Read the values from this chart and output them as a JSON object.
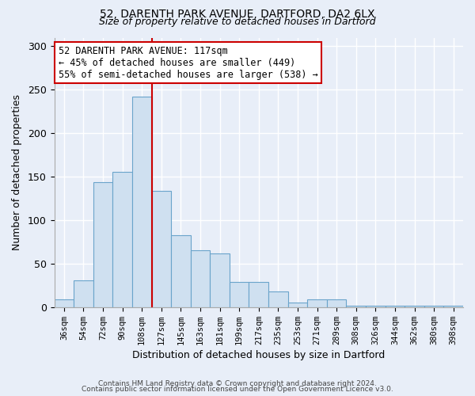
{
  "title1": "52, DARENTH PARK AVENUE, DARTFORD, DA2 6LX",
  "title2": "Size of property relative to detached houses in Dartford",
  "xlabel": "Distribution of detached houses by size in Dartford",
  "ylabel": "Number of detached properties",
  "bar_labels": [
    "36sqm",
    "54sqm",
    "72sqm",
    "90sqm",
    "108sqm",
    "127sqm",
    "145sqm",
    "163sqm",
    "181sqm",
    "199sqm",
    "217sqm",
    "235sqm",
    "253sqm",
    "271sqm",
    "289sqm",
    "308sqm",
    "326sqm",
    "344sqm",
    "362sqm",
    "380sqm",
    "398sqm"
  ],
  "bar_values": [
    9,
    31,
    144,
    156,
    242,
    134,
    83,
    65,
    62,
    29,
    29,
    18,
    5,
    9,
    9,
    2,
    2,
    2,
    2,
    2,
    2
  ],
  "bar_color": "#cfe0f0",
  "bar_edge_color": "#6aa4cb",
  "vline_color": "#cc0000",
  "annotation_title": "52 DARENTH PARK AVENUE: 117sqm",
  "annotation_line1": "← 45% of detached houses are smaller (449)",
  "annotation_line2": "55% of semi-detached houses are larger (538) →",
  "annotation_box_color": "#ffffff",
  "annotation_box_edge": "#cc0000",
  "ylim": [
    0,
    310
  ],
  "yticks": [
    0,
    50,
    100,
    150,
    200,
    250,
    300
  ],
  "footer1": "Contains HM Land Registry data © Crown copyright and database right 2024.",
  "footer2": "Contains public sector information licensed under the Open Government Licence v3.0.",
  "background_color": "#e8eef8",
  "grid_color": "#ffffff",
  "title1_fontsize": 10,
  "title2_fontsize": 9,
  "vline_pos": 4.5
}
